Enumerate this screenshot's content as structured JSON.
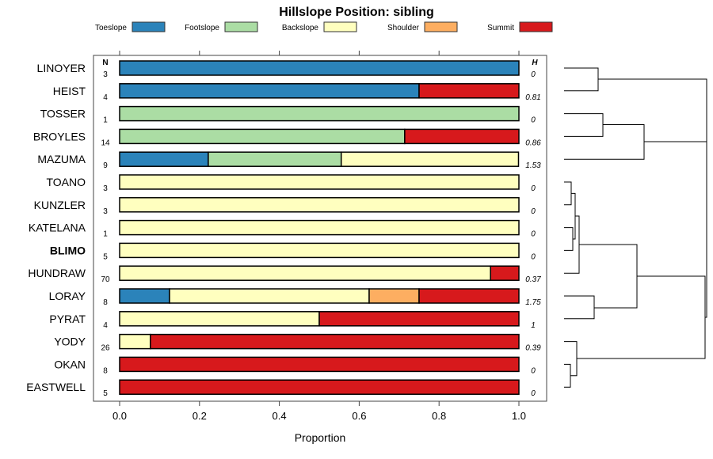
{
  "chart_data": {
    "type": "bar",
    "orientation": "horizontal-stacked",
    "title": "Hillslope Position: sibling",
    "xlabel": "Proportion",
    "xlim": [
      0,
      1
    ],
    "xticks": [
      "0.0",
      "0.2",
      "0.4",
      "0.6",
      "0.8",
      "1.0"
    ],
    "n_header": "N",
    "h_header": "H",
    "legend_position": "top",
    "series": [
      {
        "name": "Toeslope",
        "color": "#2B83BA"
      },
      {
        "name": "Footslope",
        "color": "#ABDDA4"
      },
      {
        "name": "Backslope",
        "color": "#FFFFBF"
      },
      {
        "name": "Shoulder",
        "color": "#FDAE61"
      },
      {
        "name": "Summit",
        "color": "#D7191C"
      }
    ],
    "rows": [
      {
        "label": "LINOYER",
        "n": "3",
        "h": "0",
        "values": [
          1,
          0,
          0,
          0,
          0
        ]
      },
      {
        "label": "HEIST",
        "n": "4",
        "h": "0.81",
        "values": [
          0.75,
          0,
          0,
          0,
          0.25
        ]
      },
      {
        "label": "TOSSER",
        "n": "1",
        "h": "0",
        "values": [
          0,
          1,
          0,
          0,
          0
        ]
      },
      {
        "label": "BROYLES",
        "n": "14",
        "h": "0.86",
        "values": [
          0,
          0.714,
          0,
          0,
          0.286
        ]
      },
      {
        "label": "MAZUMA",
        "n": "9",
        "h": "1.53",
        "values": [
          0.222,
          0.333,
          0.444,
          0,
          0
        ]
      },
      {
        "label": "TOANO",
        "n": "3",
        "h": "0",
        "values": [
          0,
          0,
          1,
          0,
          0
        ]
      },
      {
        "label": "KUNZLER",
        "n": "3",
        "h": "0",
        "values": [
          0,
          0,
          1,
          0,
          0
        ]
      },
      {
        "label": "KATELANA",
        "n": "1",
        "h": "0",
        "values": [
          0,
          0,
          1,
          0,
          0
        ]
      },
      {
        "label": "BLIMO",
        "n": "5",
        "h": "0",
        "values": [
          0,
          0,
          1,
          0,
          0
        ],
        "bold": true
      },
      {
        "label": "HUNDRAW",
        "n": "70",
        "h": "0.37",
        "values": [
          0,
          0,
          0.929,
          0,
          0.071
        ]
      },
      {
        "label": "LORAY",
        "n": "8",
        "h": "1.75",
        "values": [
          0.125,
          0,
          0.5,
          0.125,
          0.25
        ]
      },
      {
        "label": "PYRAT",
        "n": "4",
        "h": "1",
        "values": [
          0,
          0,
          0.5,
          0,
          0.5
        ]
      },
      {
        "label": "YODY",
        "n": "26",
        "h": "0.39",
        "values": [
          0,
          0,
          0.077,
          0,
          0.923
        ]
      },
      {
        "label": "OKAN",
        "n": "8",
        "h": "0",
        "values": [
          0,
          0,
          0,
          0,
          1
        ]
      },
      {
        "label": "EASTWELL",
        "n": "5",
        "h": "0",
        "values": [
          0,
          0,
          0,
          0,
          1
        ]
      }
    ]
  }
}
